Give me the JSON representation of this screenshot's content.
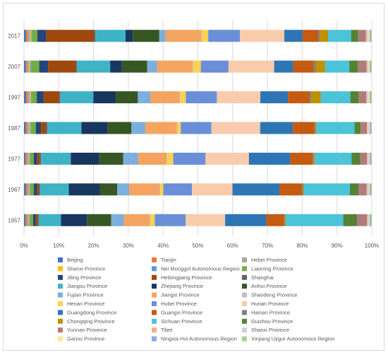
{
  "chart_data": {
    "type": "bar",
    "stacked": true,
    "percent_stacked": true,
    "orientation": "horizontal",
    "title": "",
    "xlabel": "",
    "ylabel": "",
    "xlim": [
      0,
      100
    ],
    "x_ticks": [
      "0%",
      "10%",
      "20%",
      "30%",
      "40%",
      "50%",
      "60%",
      "70%",
      "80%",
      "90%",
      "100%"
    ],
    "grid": true,
    "legend_position": "bottom",
    "categories": [
      "2017",
      "2007",
      "1997",
      "1987",
      "1977",
      "1967",
      "1957"
    ],
    "series": [
      {
        "name": "Beijing",
        "color": "#4472c4",
        "values": [
          0.6,
          0.5,
          0.6,
          0.5,
          0.4,
          0.5,
          0.4
        ]
      },
      {
        "name": "Tianjin",
        "color": "#ed7d31",
        "values": [
          0.5,
          0.4,
          0.5,
          0.4,
          0.4,
          0.4,
          0.4
        ]
      },
      {
        "name": "Hebei Province",
        "color": "#a5a5a5",
        "values": [
          0.6,
          0.6,
          0.6,
          0.6,
          0.6,
          0.6,
          0.6
        ]
      },
      {
        "name": "Shanxi Province",
        "color": "#ffc000",
        "values": [
          0.4,
          0.3,
          0.3,
          0.3,
          0.2,
          0.2,
          0.2
        ]
      },
      {
        "name": "Nei Monggol Autonomous Region",
        "color": "#5b9bd5",
        "values": [
          0.3,
          0.3,
          0.3,
          0.3,
          0.2,
          0.2,
          0.2
        ]
      },
      {
        "name": "Liaoning Province",
        "color": "#70ad47",
        "values": [
          1.5,
          2.3,
          1.4,
          1.3,
          1.0,
          0.9,
          0.8
        ]
      },
      {
        "name": "Jiling Province",
        "color": "#264478",
        "values": [
          2.6,
          2.6,
          2.0,
          1.5,
          1.0,
          0.8,
          0.7
        ]
      },
      {
        "name": "Heilongjiang Province",
        "color": "#9e480e",
        "values": [
          13.9,
          8.0,
          4.5,
          1.5,
          0.8,
          0.6,
          0.6
        ]
      },
      {
        "name": "Shanghai",
        "color": "#636363",
        "values": [
          0.3,
          0.3,
          0.3,
          0.3,
          0.3,
          0.3,
          0.3
        ]
      },
      {
        "name": "Jiangsu Province",
        "color": "#3fb3c6",
        "values": [
          8.8,
          9.6,
          9.6,
          9.8,
          8.6,
          8.2,
          6.3
        ]
      },
      {
        "name": "Zhejiang Province",
        "color": "#17375e",
        "values": [
          2.1,
          3.4,
          6.5,
          7.6,
          8.2,
          8.8,
          7.4
        ]
      },
      {
        "name": "Anhui Province",
        "color": "#375623",
        "values": [
          7.7,
          7.3,
          6.4,
          6.8,
          6.9,
          4.9,
          6.9
        ]
      },
      {
        "name": "Fujian Province",
        "color": "#7cafdd",
        "values": [
          1.8,
          2.9,
          3.6,
          4.0,
          4.3,
          3.4,
          3.6
        ]
      },
      {
        "name": "Jiangxi Province",
        "color": "#f4a460",
        "values": [
          10.3,
          10.2,
          8.5,
          9.0,
          8.2,
          8.6,
          7.3
        ]
      },
      {
        "name": "Shandong Province",
        "color": "#bfbfbf",
        "values": [
          0.3,
          0.2,
          0.2,
          0.2,
          0.2,
          0.2,
          0.2
        ]
      },
      {
        "name": "Henan Province",
        "color": "#ffd24d",
        "values": [
          1.8,
          2.2,
          1.6,
          1.0,
          1.7,
          0.9,
          1.3
        ]
      },
      {
        "name": "Hubei Province",
        "color": "#6a8fd8",
        "values": [
          9.2,
          8.0,
          9.0,
          8.8,
          9.3,
          8.1,
          8.8
        ]
      },
      {
        "name": "Hunan Province",
        "color": "#f8cbad",
        "values": [
          12.9,
          13.2,
          12.6,
          14.0,
          12.5,
          11.5,
          11.2
        ]
      },
      {
        "name": "Guangdong Province",
        "color": "#2e75b6",
        "values": [
          5.3,
          5.5,
          8.0,
          9.4,
          11.9,
          13.3,
          11.7
        ]
      },
      {
        "name": "Guangxi Province",
        "color": "#c55a11",
        "values": [
          4.6,
          5.9,
          6.2,
          6.2,
          6.5,
          6.3,
          5.0
        ]
      },
      {
        "name": "Hainan Province",
        "color": "#7f7f7f",
        "values": [
          0.5,
          0.6,
          0.5,
          0.3,
          0.3,
          0.3,
          0.3
        ]
      },
      {
        "name": "Chongqing Province",
        "color": "#bf9000",
        "values": [
          2.3,
          2.7,
          2.8,
          0.3,
          0.3,
          0.3,
          0.3
        ]
      },
      {
        "name": "Sichuan Province",
        "color": "#4bc3d8",
        "values": [
          6.7,
          7.0,
          8.6,
          10.9,
          10.6,
          13.1,
          16.3
        ]
      },
      {
        "name": "Guizhou Province",
        "color": "#548235",
        "values": [
          2.0,
          2.5,
          2.4,
          1.8,
          2.5,
          2.4,
          3.9
        ]
      },
      {
        "name": "Yunnan Province",
        "color": "#b07c7c",
        "values": [
          2.3,
          2.5,
          2.2,
          1.8,
          1.9,
          2.3,
          2.8
        ]
      },
      {
        "name": "Tibet",
        "color": "#f4b183",
        "values": [
          0.3,
          0.2,
          0.2,
          0.2,
          0.2,
          0.2,
          0.2
        ]
      },
      {
        "name": "Shanxi Province",
        "color": "#d0d0d0",
        "values": [
          0.5,
          0.4,
          0.5,
          0.4,
          0.4,
          0.5,
          0.4
        ]
      },
      {
        "name": "Gansu Province",
        "color": "#ffe699",
        "values": [
          0.3,
          0.3,
          0.3,
          0.2,
          0.2,
          0.2,
          0.2
        ]
      },
      {
        "name": "Ningxia Hui Autonomous Region",
        "color": "#8faadc",
        "values": [
          0.3,
          0.3,
          0.3,
          0.3,
          0.3,
          0.3,
          0.3
        ]
      },
      {
        "name": "Xinjiang Uygur Autonomous Region",
        "color": "#a9d18e",
        "values": [
          0.3,
          0.3,
          0.3,
          0.3,
          0.3,
          0.3,
          0.3
        ]
      }
    ]
  }
}
